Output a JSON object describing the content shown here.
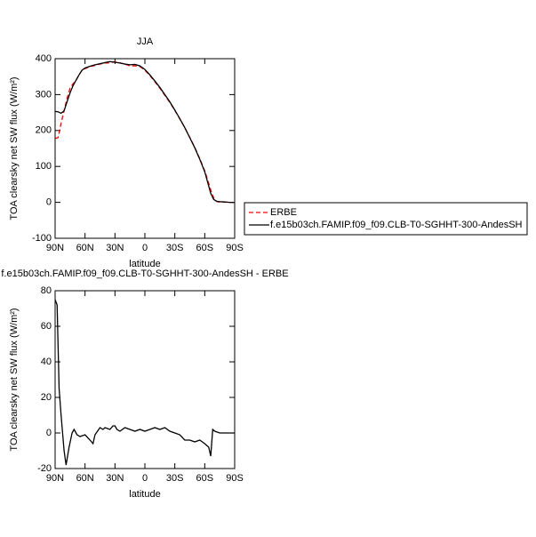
{
  "chart_data": [
    {
      "type": "line",
      "title": "JJA",
      "ylabel": "TOA clearsky net SW flux (W/m²)",
      "xlabel": "latitude",
      "x": [
        90,
        87,
        84,
        81,
        78,
        75,
        72,
        69,
        66,
        63,
        60,
        55,
        50,
        45,
        40,
        35,
        30,
        25,
        20,
        15,
        10,
        5,
        0,
        -5,
        -10,
        -15,
        -20,
        -25,
        -30,
        -35,
        -40,
        -45,
        -50,
        -55,
        -60,
        -63,
        -66,
        -69,
        -72,
        -75,
        -80,
        -85,
        -90
      ],
      "series": [
        {
          "name": "ERBE",
          "color": "#ff0000",
          "linestyle": "dashed",
          "values": [
            178,
            180,
            220,
            255,
            290,
            318,
            330,
            340,
            355,
            368,
            372,
            378,
            381,
            385,
            388,
            388,
            392,
            388,
            385,
            380,
            380,
            378,
            368,
            353,
            336,
            318,
            298,
            278,
            256,
            232,
            208,
            181,
            153,
            122,
            88,
            62,
            35,
            12,
            2,
            1,
            1,
            0,
            0
          ]
        },
        {
          "name": "f.e15b03ch.FAMIP.f09_f09.CLB-T0-SGHHT-300-AndesSH",
          "color": "#000000",
          "linestyle": "solid",
          "values": [
            253,
            252,
            248,
            255,
            280,
            305,
            325,
            340,
            355,
            368,
            374,
            379,
            383,
            386,
            389,
            392,
            390,
            388,
            385,
            383,
            384,
            380,
            370,
            355,
            338,
            320,
            300,
            280,
            257,
            233,
            208,
            180,
            152,
            120,
            85,
            55,
            25,
            8,
            3,
            2,
            1,
            0,
            0
          ]
        }
      ],
      "xlim": [
        90,
        -90
      ],
      "xticks": [
        {
          "value": 90,
          "label": "90N"
        },
        {
          "value": 60,
          "label": "60N"
        },
        {
          "value": 30,
          "label": "30N"
        },
        0,
        {
          "value": -30,
          "label": "30S"
        },
        {
          "value": -60,
          "label": "60S"
        },
        {
          "value": -90,
          "label": "90S"
        }
      ],
      "ylim": [
        -100,
        400
      ],
      "yticks": [
        -100,
        0,
        100,
        200,
        300,
        400
      ],
      "legend": "right"
    },
    {
      "type": "line",
      "title": "f.e15b03ch.FAMIP.f09_f09.CLB-T0-SGHHT-300-AndesSH - ERBE",
      "ylabel": "TOA clearsky net SW flux (W/m²)",
      "xlabel": "latitude",
      "x": [
        90,
        88,
        86,
        84,
        81,
        79,
        76,
        73,
        71,
        68,
        65,
        60,
        55,
        52,
        50,
        45,
        42,
        40,
        35,
        32,
        30,
        28,
        25,
        20,
        15,
        10,
        5,
        0,
        -5,
        -10,
        -15,
        -20,
        -25,
        -30,
        -35,
        -40,
        -45,
        -50,
        -55,
        -60,
        -64,
        -66,
        -68,
        -70,
        -75,
        -80,
        -90
      ],
      "series": [
        {
          "color": "#000000",
          "linestyle": "solid",
          "values": [
            75,
            72,
            25,
            10,
            -10,
            -18,
            -8,
            0,
            2,
            -1,
            -2,
            -1,
            -4,
            -6,
            -1,
            3,
            2,
            3,
            2,
            4,
            4,
            2,
            1,
            3,
            2,
            1,
            2,
            1,
            2,
            3,
            2,
            3,
            1,
            0,
            -1,
            -4,
            -4,
            -5,
            -4,
            -6,
            -8,
            -13,
            2,
            1,
            0,
            0,
            0
          ]
        }
      ],
      "xlim": [
        90,
        -90
      ],
      "xticks": [
        {
          "value": 90,
          "label": "90N"
        },
        {
          "value": 60,
          "label": "60N"
        },
        {
          "value": 30,
          "label": "30N"
        },
        0,
        {
          "value": -30,
          "label": "30S"
        },
        {
          "value": -60,
          "label": "60S"
        },
        {
          "value": -90,
          "label": "90S"
        }
      ],
      "ylim": [
        -20,
        80
      ],
      "yticks": [
        -20,
        0,
        20,
        40,
        60,
        80
      ]
    }
  ]
}
